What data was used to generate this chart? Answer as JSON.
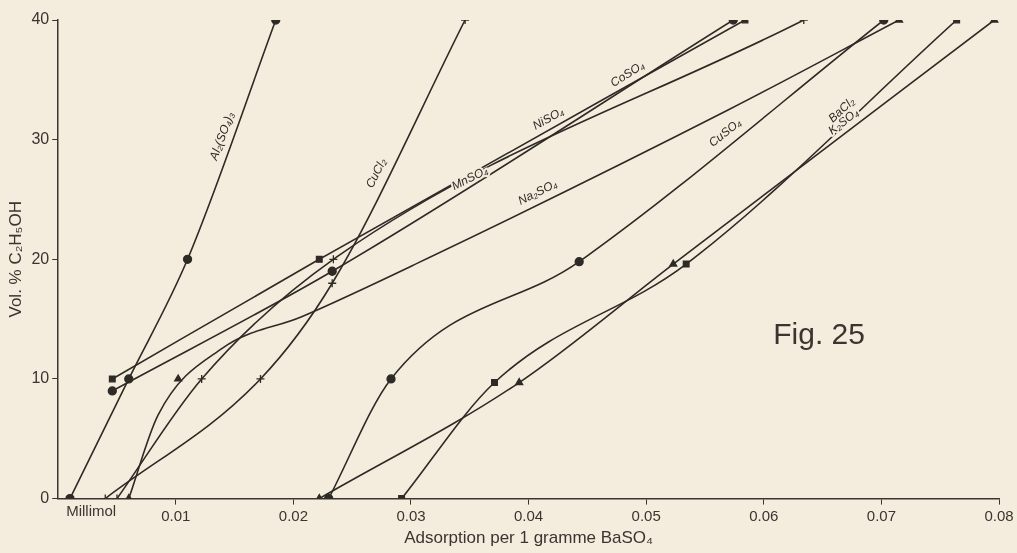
{
  "chart_data": {
    "type": "line",
    "xlabel": "Adsorption per 1 gramme BaSO₄",
    "ylabel": "Vol. % C₂H₅OH",
    "annotations": [
      "Millimol",
      "Fig. 25"
    ],
    "xlim": [
      0,
      0.08
    ],
    "xticks": [
      0.01,
      0.02,
      0.03,
      0.04,
      0.05,
      0.06,
      0.07,
      0.08
    ],
    "ylim": [
      0,
      40
    ],
    "yticks": [
      0,
      10,
      20,
      30,
      40
    ],
    "grid": false,
    "legend": false,
    "line_style": "solid",
    "series": [
      {
        "name": "Al₂(SO₄)₃",
        "color": "#2e2a26",
        "marker": "circle",
        "x": [
          0.001,
          0.006,
          0.011,
          0.0185
        ],
        "values": [
          0,
          10,
          20,
          40
        ]
      },
      {
        "name": "CuCl₂",
        "color": "#2e2a26",
        "marker": "cross",
        "x": [
          0.004,
          0.0172,
          0.0233,
          0.0346
        ],
        "values": [
          0,
          10,
          18,
          40
        ]
      },
      {
        "name": "MnSO₄",
        "color": "#2e2a26",
        "marker": "cross",
        "x": [
          0.005,
          0.0122,
          0.0234,
          0.0634
        ],
        "values": [
          0,
          10,
          20,
          40
        ]
      },
      {
        "name": "NiSO₄",
        "color": "#2e2a26",
        "marker": "square",
        "x": [
          0.0046,
          0.0222,
          0.0584
        ],
        "values": [
          10,
          20,
          40
        ]
      },
      {
        "name": "CoSO₄",
        "color": "#2e2a26",
        "marker": "circle",
        "x": [
          0.0046,
          0.0233,
          0.0574
        ],
        "values": [
          9,
          19,
          40
        ]
      },
      {
        "type": "scatter",
        "color": "#2e2a26",
        "marker": "triangle",
        "x": [
          0.006,
          0.0102,
          0.0715
        ],
        "values": [
          0,
          10,
          40
        ]
      },
      {
        "name": "Na₂SO₄",
        "type": "line",
        "color": "#2e2a26",
        "marker": "none",
        "x": [
          0.006,
          0.0085,
          0.014,
          0.0207,
          0.0306,
          0.057,
          0.0715
        ],
        "values": [
          0,
          7,
          12.6,
          15.2,
          19.7,
          32.5,
          40
        ]
      },
      {
        "name": "CuSO₄",
        "color": "#2e2a26",
        "marker": "circle",
        "x": [
          0.023,
          0.0283,
          0.0443,
          0.0702
        ],
        "values": [
          0,
          10,
          19.8,
          40
        ]
      },
      {
        "name": "K₂SO₄",
        "color": "#2e2a26",
        "marker": "triangle",
        "x": [
          0.0222,
          0.0392,
          0.0523,
          0.0796
        ],
        "values": [
          0,
          9.7,
          19.6,
          40
        ]
      },
      {
        "name": "BaCl₂",
        "color": "#2e2a26",
        "marker": "square",
        "x": [
          0.0292,
          0.0371,
          0.0534,
          0.0764
        ],
        "values": [
          0,
          9.7,
          19.6,
          40
        ]
      }
    ]
  }
}
